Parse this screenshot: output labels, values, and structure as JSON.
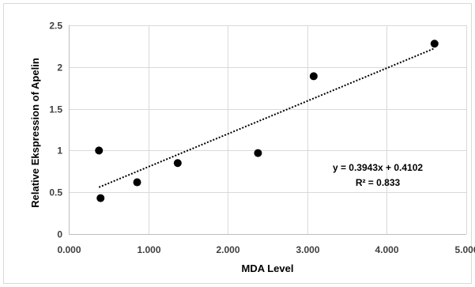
{
  "chart_data": {
    "type": "scatter",
    "title": "",
    "xlabel": "MDA Level",
    "ylabel": "Relative Ekspression  of Apelin",
    "xlim": [
      0,
      5
    ],
    "ylim": [
      0,
      2.5
    ],
    "x_ticks": [
      0,
      1,
      2,
      3,
      4,
      5
    ],
    "x_tick_labels": [
      "0.000",
      "1.000",
      "2.000",
      "3.000",
      "4.000",
      "5.000"
    ],
    "y_ticks": [
      0,
      0.5,
      1,
      1.5,
      2,
      2.5
    ],
    "y_tick_labels": [
      "0",
      "0.5",
      "1",
      "1.5",
      "2",
      "2.5"
    ],
    "grid": true,
    "legend": "none",
    "series": [
      {
        "points": [
          {
            "x": 0.38,
            "y": 1.0
          },
          {
            "x": 0.4,
            "y": 0.43
          },
          {
            "x": 0.86,
            "y": 0.62
          },
          {
            "x": 1.37,
            "y": 0.85
          },
          {
            "x": 2.38,
            "y": 0.97
          },
          {
            "x": 3.08,
            "y": 1.89
          },
          {
            "x": 4.6,
            "y": 2.28
          }
        ],
        "color": "#000000"
      }
    ],
    "trendline": {
      "type": "linear",
      "slope": 0.3943,
      "intercept": 0.4102,
      "x_range": [
        0.38,
        4.6
      ],
      "equation_label": "y = 0.3943x + 0.4102",
      "r2_label": "R² = 0.833"
    }
  }
}
